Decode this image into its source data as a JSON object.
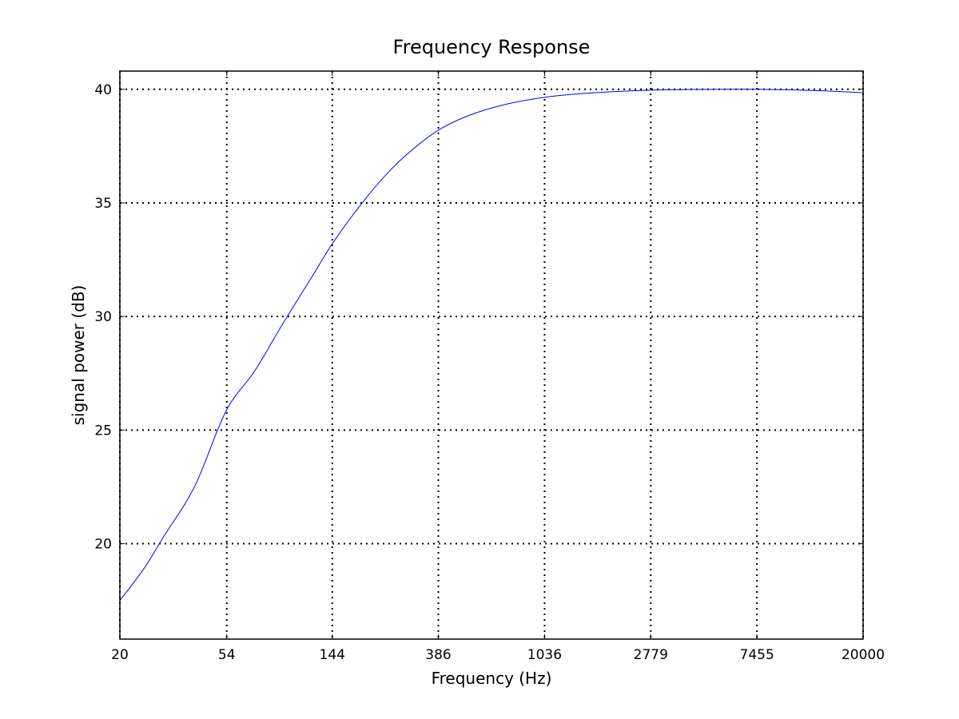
{
  "chart_data": {
    "type": "line",
    "title": "Frequency Response",
    "xlabel": "Frequency (Hz)",
    "ylabel": "signal power (dB)",
    "x_scale": "log",
    "xlim": [
      20,
      20000
    ],
    "ylim": [
      15.8,
      40.8
    ],
    "x_ticks": [
      20,
      54,
      144,
      386,
      1036,
      2779,
      7455,
      20000
    ],
    "x_tick_labels": [
      "20",
      "54",
      "144",
      "386",
      "1036",
      "2779",
      "7455",
      "20000"
    ],
    "y_ticks": [
      20,
      25,
      30,
      35,
      40
    ],
    "y_tick_labels": [
      "20",
      "25",
      "30",
      "35",
      "40"
    ],
    "grid": true,
    "series_color": "#0000ff",
    "series": [
      {
        "x": [
          20,
          25,
          30,
          40,
          54,
          70,
          90,
          120,
          144,
          200,
          250,
          300,
          386,
          500,
          700,
          1036,
          1500,
          2000,
          2779,
          4000,
          5500,
          7455,
          10000,
          14000,
          20000
        ],
        "values": [
          17.5,
          18.9,
          20.3,
          22.5,
          25.9,
          27.6,
          29.6,
          31.8,
          33.2,
          35.3,
          36.5,
          37.3,
          38.2,
          38.8,
          39.3,
          39.65,
          39.82,
          39.9,
          39.96,
          39.99,
          40.0,
          40.0,
          39.98,
          39.93,
          39.85
        ]
      }
    ]
  }
}
